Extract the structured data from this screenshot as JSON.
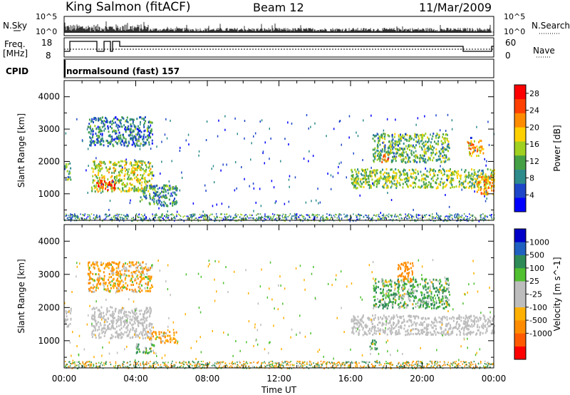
{
  "header": {
    "station": "King Salmon (fitACF)",
    "beam": "Beam 12",
    "date": "11/Mar/2009"
  },
  "top_panels": {
    "nsky_label": "N.Sky",
    "nsky_ticks": [
      "10^5",
      "10^0"
    ],
    "nsearch_label": "N.Search",
    "nsearch_ticks": [
      "10^5",
      "10^0"
    ],
    "freq_label": [
      "Freq.",
      "[MHz]"
    ],
    "freq_ticks": [
      "18",
      "8"
    ],
    "nave_label": "Nave",
    "nave_ticks": [
      "60",
      "0"
    ],
    "cpid_label": "CPID",
    "cpid_text": "normalsound (fast) 157"
  },
  "colors": {
    "power_scale": [
      "#0000ff",
      "#1e46c8",
      "#2e8b8b",
      "#45a045",
      "#a0d020",
      "#ffd000",
      "#ff8c00",
      "#ff4000",
      "#ff0000"
    ],
    "velocity_scale": [
      "#ff0000",
      "#ff5a00",
      "#ff8c00",
      "#ffb000",
      "#bdbdbd",
      "#bdbdbd",
      "#50c030",
      "#2e8b57",
      "#2060c0",
      "#0000c8"
    ]
  },
  "chart_data": [
    {
      "type": "heatmap",
      "title": "",
      "xlabel": "Time UT",
      "ylabel": "Slant Range [km]",
      "xticks": [
        "00:00",
        "04:00",
        "08:00",
        "12:00",
        "16:00",
        "20:00",
        "00:00"
      ],
      "yticks": [
        "1000",
        "2000",
        "3000",
        "4000"
      ],
      "xlim_hours": [
        0,
        24
      ],
      "ylim_km": [
        180,
        4500
      ],
      "colorbar": {
        "label": "Power [dB]",
        "ticks": [
          "4",
          "8",
          "12",
          "16",
          "20",
          "24",
          "28"
        ],
        "range": [
          0,
          30
        ]
      },
      "echo_regions": [
        {
          "t0": 0.0,
          "t1": 0.35,
          "r0": 1450,
          "r1": 2000,
          "value": 12
        },
        {
          "t0": 1.5,
          "t1": 4.9,
          "r0": 1100,
          "r1": 2050,
          "value": 16
        },
        {
          "t0": 1.8,
          "t1": 2.8,
          "r0": 1150,
          "r1": 1450,
          "value": 26
        },
        {
          "t0": 4.2,
          "t1": 6.3,
          "r0": 650,
          "r1": 1300,
          "value": 10
        },
        {
          "t0": 1.3,
          "t1": 4.9,
          "r0": 2500,
          "r1": 3400,
          "value": 8
        },
        {
          "t0": 16.0,
          "t1": 24.0,
          "r0": 1200,
          "r1": 1800,
          "value": 14
        },
        {
          "t0": 17.2,
          "t1": 21.5,
          "r0": 2000,
          "r1": 2900,
          "value": 12
        },
        {
          "t0": 17.7,
          "t1": 18.2,
          "r0": 2000,
          "r1": 2300,
          "value": 24
        },
        {
          "t0": 23.0,
          "t1": 24.0,
          "r0": 1000,
          "r1": 1600,
          "value": 20
        },
        {
          "t0": 22.5,
          "t1": 23.4,
          "r0": 2200,
          "r1": 2700,
          "value": 20
        }
      ]
    },
    {
      "type": "heatmap",
      "title": "",
      "xlabel": "Time UT",
      "ylabel": "Slant Range [km]",
      "xticks": [
        "00:00",
        "04:00",
        "08:00",
        "12:00",
        "16:00",
        "20:00",
        "00:00"
      ],
      "yticks": [
        "1000",
        "2000",
        "3000",
        "4000"
      ],
      "xlim_hours": [
        0,
        24
      ],
      "ylim_km": [
        180,
        4500
      ],
      "colorbar": {
        "label": "Velocity [m s^-1]",
        "ticks": [
          "1000",
          "500",
          "100",
          "25",
          "-25",
          "-100",
          "-500",
          "-1000"
        ],
        "range": [
          -1000,
          1000
        ]
      },
      "echo_regions": [
        {
          "t0": 0.0,
          "t1": 0.35,
          "r0": 1450,
          "r1": 2000,
          "value": 0
        },
        {
          "t0": 1.5,
          "t1": 4.9,
          "r0": 1100,
          "r1": 2050,
          "value": 0
        },
        {
          "t0": 4.6,
          "t1": 6.3,
          "r0": 950,
          "r1": 1300,
          "value": -100
        },
        {
          "t0": 4.0,
          "t1": 5.0,
          "r0": 650,
          "r1": 950,
          "value": 100
        },
        {
          "t0": 1.3,
          "t1": 4.9,
          "r0": 2500,
          "r1": 3400,
          "value": -100
        },
        {
          "t0": 16.0,
          "t1": 24.0,
          "r0": 1200,
          "r1": 1800,
          "value": 0
        },
        {
          "t0": 17.2,
          "t1": 21.5,
          "r0": 2000,
          "r1": 2900,
          "value": 100
        },
        {
          "t0": 18.6,
          "t1": 19.5,
          "r0": 2800,
          "r1": 3400,
          "value": -300
        },
        {
          "t0": 17.0,
          "t1": 17.5,
          "r0": 750,
          "r1": 1050,
          "value": 100
        }
      ]
    }
  ]
}
